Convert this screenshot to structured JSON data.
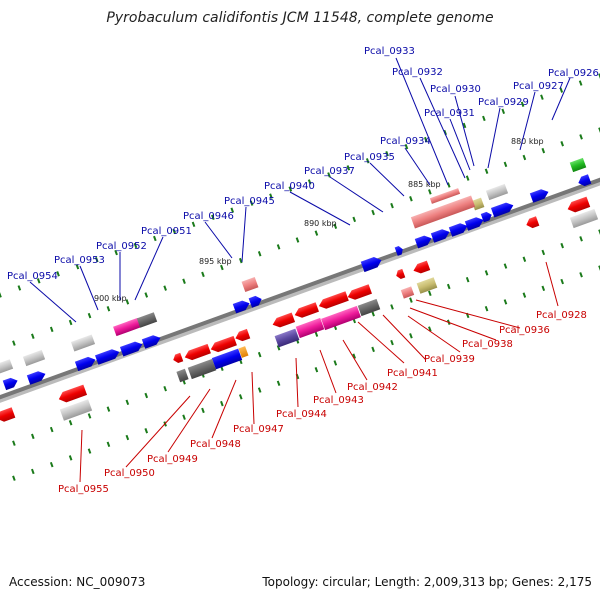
{
  "title": "Pyrobaculum calidifontis JCM 11548, complete genome",
  "accession": "Accession: NC_009073",
  "summary": "Topology: circular; Length: 2,009,313 bp; Genes: 2,175",
  "colors": {
    "top_label": "#0a0aa8",
    "bottom_label": "#c80000",
    "axis": "#777777"
  },
  "kbp_labels": [
    "880 kbp",
    "885 kbp",
    "890 kbp",
    "895 kbp",
    "900 kbp"
  ],
  "top_genes": [
    "Pcal_0926",
    "Pcal_0927",
    "Pcal_0929",
    "Pcal_0930",
    "Pcal_0931",
    "Pcal_0932",
    "Pcal_0933",
    "Pcal_0934",
    "Pcal_0935",
    "Pcal_0937",
    "Pcal_0940",
    "Pcal_0945",
    "Pcal_0946",
    "Pcal_0951",
    "Pcal_0952",
    "Pcal_0953",
    "Pcal_0954"
  ],
  "bottom_genes": [
    "Pcal_0928",
    "Pcal_0936",
    "Pcal_0938",
    "Pcal_0939",
    "Pcal_0941",
    "Pcal_0942",
    "Pcal_0943",
    "Pcal_0944",
    "Pcal_0947",
    "Pcal_0948",
    "Pcal_0949",
    "Pcal_0950",
    "Pcal_0955"
  ]
}
